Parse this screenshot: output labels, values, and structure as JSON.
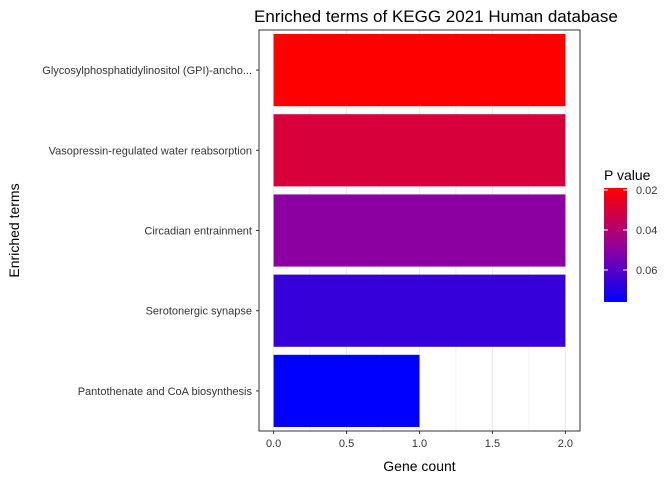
{
  "chart_data": {
    "type": "bar",
    "orientation": "horizontal",
    "title": "Enriched terms of KEGG 2021 Human database",
    "xlabel": "Gene count",
    "ylabel": "Enriched terms",
    "xlim": [
      -0.1,
      2.1
    ],
    "xticks": [
      "0.0",
      "0.5",
      "1.0",
      "1.5",
      "2.0"
    ],
    "xtick_values": [
      0,
      0.5,
      1.0,
      1.5,
      2.0
    ],
    "grid": true,
    "categories": [
      "Glycosylphosphatidylinositol (GPI)-ancho...",
      "Vasopressin-regulated water reabsorption",
      "Circadian entrainment",
      "Serotonergic synapse",
      "Pantothenate and CoA biosynthesis"
    ],
    "values": [
      2,
      2,
      2,
      2,
      1
    ],
    "p_values": [
      0.019,
      0.03,
      0.05,
      0.066,
      0.076
    ],
    "colorbar": {
      "title": "P value",
      "ticks": [
        "0.02",
        "0.04",
        "0.06"
      ],
      "tick_values": [
        0.02,
        0.04,
        0.06
      ],
      "range": [
        0.076,
        0.019
      ],
      "low_color": "#FF0000",
      "high_color": "#0000FF"
    },
    "legend_position": "right"
  }
}
